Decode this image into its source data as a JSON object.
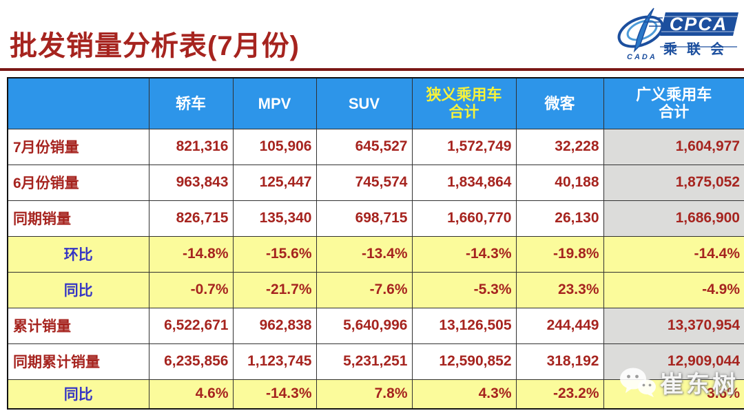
{
  "page": {
    "title": "批发销量分析表(7月份)"
  },
  "logo": {
    "acronym": "CPCA",
    "name": "乘联会",
    "sub_acronym": "CADA"
  },
  "watermark": {
    "text": "崔东树",
    "icon": "wechat-icon"
  },
  "colors": {
    "title_red": "#A6241F",
    "rule_maroon": "#7A1815",
    "header_blue": "#2D95E9",
    "header_text_white": "#FFFFFF",
    "header_accent_yellow": "#F6F23A",
    "percent_row_yellow": "#FBFB9B",
    "total_column_gray": "#DCDCDA",
    "value_red": "#A6241F",
    "ratio_label_blue": "#3434C4",
    "logo_blue": "#1C4F9E"
  },
  "chart_data": {
    "type": "table",
    "title": "批发销量分析表(7月份)",
    "columns": [
      "",
      "轿车",
      "MPV",
      "SUV",
      "狭义乘用车\n合计",
      "微客",
      "广义乘用车\n合计"
    ],
    "accent_header_index": 4,
    "total_column_index": 5,
    "rows": [
      {
        "label": "7月份销量",
        "type": "sales",
        "values": [
          "821,316",
          "105,906",
          "645,527",
          "1,572,749",
          "32,228",
          "1,604,977"
        ]
      },
      {
        "label": "6月份销量",
        "type": "sales",
        "values": [
          "963,843",
          "125,447",
          "745,574",
          "1,834,864",
          "40,188",
          "1,875,052"
        ]
      },
      {
        "label": "同期销量",
        "type": "sales",
        "values": [
          "826,715",
          "135,340",
          "698,715",
          "1,660,770",
          "26,130",
          "1,686,900"
        ]
      },
      {
        "label": "环比",
        "type": "percent",
        "values": [
          "-14.8%",
          "-15.6%",
          "-13.4%",
          "-14.3%",
          "-19.8%",
          "-14.4%"
        ]
      },
      {
        "label": "同比",
        "type": "percent",
        "values": [
          "-0.7%",
          "-21.7%",
          "-7.6%",
          "-5.3%",
          "23.3%",
          "-4.9%"
        ]
      },
      {
        "label": "累计销量",
        "type": "sales",
        "values": [
          "6,522,671",
          "962,838",
          "5,640,996",
          "13,126,505",
          "244,449",
          "13,370,954"
        ]
      },
      {
        "label": "同期累计销量",
        "type": "sales",
        "values": [
          "6,235,856",
          "1,123,745",
          "5,231,251",
          "12,590,852",
          "318,192",
          "12,909,044"
        ]
      },
      {
        "label": "同比",
        "type": "percent",
        "values": [
          "4.6%",
          "-14.3%",
          "7.8%",
          "4.3%",
          "-23.2%",
          "3.6%"
        ]
      }
    ]
  }
}
